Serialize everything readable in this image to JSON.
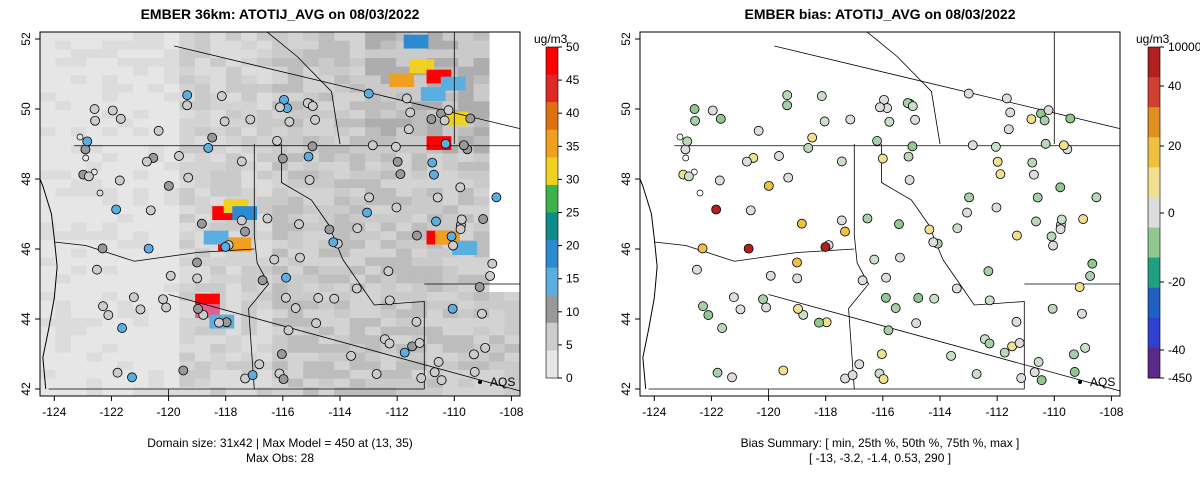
{
  "left": {
    "title": "EMBER 36km: ATOTIJ_AVG on 08/03/2022",
    "units": "ug/m3",
    "caption_line1": "Domain size: 31x42 | Max Model = 450 at (13, 35)",
    "caption_line2": "Max Obs: 28",
    "colorbar_ticks": [
      "50",
      "45",
      "40",
      "35",
      "30",
      "25",
      "20",
      "15",
      "10",
      "5",
      "0"
    ],
    "legend_label": "AQS"
  },
  "right": {
    "title": "EMBER bias: ATOTIJ_AVG on 08/03/2022",
    "units": "ug/m3",
    "caption_line1": "Bias Summary: [ min, 25th %, 50th %, 75th %, max ]",
    "caption_line2": "[ -13,   -3.2,   -1.4,   0.53,   290 ]",
    "colorbar_ticks": [
      "10000",
      "40",
      "20",
      "0",
      "-20",
      "-40",
      "-450"
    ],
    "legend_label": "AQS"
  },
  "axes": {
    "x_ticks": [
      "-124",
      "-122",
      "-120",
      "-118",
      "-116",
      "-114",
      "-112",
      "-110",
      "-108"
    ],
    "y_ticks": [
      "42",
      "44",
      "46",
      "48",
      "50",
      "52"
    ],
    "xlim": [
      -124.5,
      -107.7
    ],
    "ylim": [
      41.8,
      52.2
    ]
  },
  "colors": {
    "model_scale": [
      "#e6e6e6",
      "#cccccc",
      "#b3b3b3",
      "#999999",
      "#5aaee0",
      "#2b8ad0",
      "#0f8a8a",
      "#3cb34a",
      "#f0d020",
      "#f0a020",
      "#e07010",
      "#e02828",
      "#ff0000"
    ],
    "bias_scale": [
      "#5a2a8a",
      "#3040d0",
      "#2060c0",
      "#20a080",
      "#90c890",
      "#dddddd",
      "#f0e090",
      "#f0c040",
      "#e09020",
      "#d04030",
      "#b02020"
    ]
  }
}
